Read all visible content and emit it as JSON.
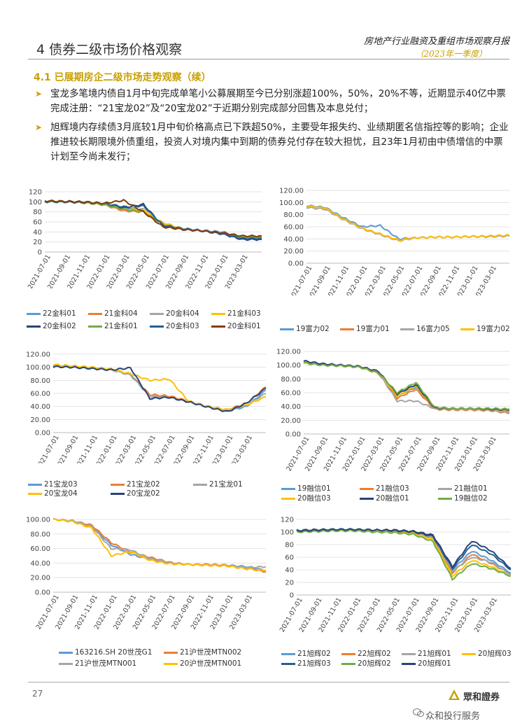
{
  "header": {
    "title": "4 债券二级市场价格观察",
    "right_title": "房地产行业融资及重组市场观察月报",
    "right_sub": "（2023年一季度）"
  },
  "section": "4.1 已展期房企二级市场走势观察（续）",
  "bullets": [
    "宝龙多笔境内债自1月中旬完成单笔小公募展期至今已分别涨超100%，50%，20%不等，近期显示40亿中票完成注册：“21宝龙02”及“20宝龙02”于近期分别完成部分回售及本息兑付；",
    "旭辉境内存续债3月底较1月中旬价格高点已下跌超50%，主要受年报失约、业绩期匿名信指控等的影响；企业推进较长期限境外债重组，投资人对境内集中到期的债券兑付存在较大担忧，且23年1月初由中债增信的中票计划至今尚未发行；"
  ],
  "footer": {
    "page": "27",
    "logo_text": "眾和證券",
    "watermark": "众和投行服务"
  },
  "colors": {
    "gold": "#c8a000"
  },
  "chart_data": [
    {
      "type": "line",
      "ylim": [
        0,
        120
      ],
      "yticks": [
        "0",
        "20",
        "40",
        "60",
        "80",
        "100",
        "120"
      ],
      "xticks": [
        "2021-07-01",
        "2021-09-01",
        "2021-11-01",
        "2022-01-01",
        "2022-03-01",
        "2022-05-01",
        "2022-07-01",
        "2022-09-01",
        "2022-11-01",
        "2023-01-01",
        "2023-03-01"
      ],
      "series": [
        {
          "name": "22金科01",
          "color": "#5b9bd5",
          "values": [
            100,
            100,
            99,
            96,
            88,
            85,
            55,
            47,
            43,
            40,
            30,
            30
          ]
        },
        {
          "name": "21金科04",
          "color": "#ed7d31",
          "values": [
            100,
            100,
            98,
            94,
            82,
            80,
            58,
            46,
            42,
            38,
            30,
            28
          ]
        },
        {
          "name": "20金科04",
          "color": "#a5a5a5",
          "values": [
            100,
            100,
            99,
            95,
            86,
            82,
            56,
            45,
            42,
            38,
            30,
            29
          ]
        },
        {
          "name": "21金科03",
          "color": "#ffc000",
          "values": [
            100,
            100,
            98,
            95,
            85,
            84,
            57,
            46,
            42,
            38,
            30,
            30
          ]
        },
        {
          "name": "20金科02",
          "color": "#264478",
          "values": [
            100,
            100,
            99,
            96,
            88,
            95,
            52,
            45,
            42,
            36,
            25,
            25
          ]
        },
        {
          "name": "21金科01",
          "color": "#70ad47",
          "values": [
            100,
            100,
            98,
            95,
            85,
            80,
            55,
            46,
            42,
            37,
            30,
            30
          ]
        },
        {
          "name": "20金科03",
          "color": "#255e91",
          "values": [
            101,
            100,
            99,
            97,
            90,
            92,
            53,
            46,
            42,
            36,
            27,
            27
          ]
        },
        {
          "name": "20金科01",
          "color": "#843c0c",
          "values": [
            102,
            101,
            100,
            97,
            103,
            80,
            50,
            45,
            42,
            38,
            32,
            32
          ]
        }
      ]
    },
    {
      "type": "line",
      "ylim": [
        0,
        120
      ],
      "yticks": [
        "0.00",
        "20.00",
        "40.00",
        "60.00",
        "80.00",
        "100.00",
        "120.00"
      ],
      "xticks": [
        "2021-07-01",
        "2021-09-01",
        "2021-11-01",
        "2022-01-01",
        "2022-03-01",
        "2022-05-01",
        "2022-07-01",
        "2022-09-01",
        "2022-11-01",
        "2023-01-01",
        "2023-03-01"
      ],
      "series": [
        {
          "name": "19富力02",
          "color": "#5b9bd5",
          "values": [
            95,
            92,
            75,
            60,
            62,
            40,
            42,
            43,
            43,
            44,
            44,
            45
          ]
        },
        {
          "name": "19富力01",
          "color": "#ed7d31",
          "values": [
            93,
            90,
            72,
            58,
            48,
            38,
            42,
            43,
            43,
            44,
            44,
            45
          ]
        },
        {
          "name": "16富力05",
          "color": "#a5a5a5",
          "values": [
            92,
            89,
            72,
            57,
            47,
            37,
            42,
            43,
            43,
            44,
            44,
            45
          ]
        },
        {
          "name": "19富力02",
          "color": "#ffc000",
          "values": [
            94,
            91,
            73,
            58,
            48,
            38,
            42,
            43,
            43,
            44,
            45,
            46
          ]
        }
      ]
    },
    {
      "type": "line",
      "ylim": [
        0,
        120
      ],
      "yticks": [
        "0.00",
        "20.00",
        "40.00",
        "60.00",
        "80.00",
        "100.00",
        "120.00"
      ],
      "xticks": [
        "2021-07-01",
        "2021-09-01",
        "2021-11-01",
        "2022-01-01",
        "2022-03-01",
        "2022-05-01",
        "2022-07-01",
        "2022-09-01",
        "2022-11-01",
        "2023-01-01",
        "2023-03-01"
      ],
      "series": [
        {
          "name": "21宝龙03",
          "color": "#5b9bd5",
          "values": [
            101,
            100,
            98,
            96,
            90,
            55,
            55,
            48,
            40,
            33,
            40,
            65
          ]
        },
        {
          "name": "21宝龙02",
          "color": "#ed7d31",
          "values": [
            103,
            101,
            99,
            97,
            88,
            58,
            56,
            48,
            40,
            35,
            45,
            70
          ]
        },
        {
          "name": "21宝龙01",
          "color": "#a5a5a5",
          "values": [
            102,
            101,
            99,
            96,
            88,
            55,
            54,
            47,
            40,
            34,
            42,
            60
          ]
        },
        {
          "name": "20宝龙04",
          "color": "#ffc000",
          "values": [
            104,
            102,
            100,
            97,
            90,
            80,
            82,
            48,
            40,
            35,
            42,
            55
          ]
        },
        {
          "name": "20宝龙02",
          "color": "#264478",
          "values": [
            101,
            100,
            98,
            96,
            99,
            52,
            54,
            47,
            39,
            32,
            45,
            68
          ]
        }
      ]
    },
    {
      "type": "line",
      "ylim": [
        0,
        120
      ],
      "yticks": [
        "0.00",
        "20.00",
        "40.00",
        "60.00",
        "80.00",
        "100.00",
        "120.00"
      ],
      "xticks": [
        "2021-07-01",
        "2021-09-01",
        "2021-11-01",
        "2022-01-01",
        "2022-03-01",
        "2022-05-01",
        "2022-07-01",
        "2022-09-01",
        "2022-11-01",
        "2023-01-01",
        "2023-03-01"
      ],
      "series": [
        {
          "name": "19融信01",
          "color": "#5b9bd5",
          "values": [
            104,
            101,
            100,
            98,
            90,
            55,
            68,
            38,
            36,
            36,
            36,
            33
          ]
        },
        {
          "name": "21融信03",
          "color": "#ed7d31",
          "values": [
            104,
            100,
            99,
            97,
            88,
            52,
            65,
            36,
            35,
            35,
            34,
            30
          ]
        },
        {
          "name": "21融信01",
          "color": "#a5a5a5",
          "values": [
            104,
            101,
            100,
            98,
            89,
            48,
            48,
            37,
            36,
            36,
            35,
            31
          ]
        },
        {
          "name": "20融信03",
          "color": "#ffc000",
          "values": [
            105,
            101,
            100,
            98,
            90,
            55,
            70,
            38,
            37,
            37,
            36,
            34
          ]
        },
        {
          "name": "20融信01",
          "color": "#264478",
          "values": [
            106,
            102,
            100,
            98,
            91,
            58,
            72,
            38,
            37,
            37,
            36,
            35
          ]
        },
        {
          "name": "19融信02",
          "color": "#70ad47",
          "values": [
            103,
            100,
            99,
            97,
            89,
            60,
            75,
            39,
            37,
            37,
            37,
            36
          ]
        }
      ]
    },
    {
      "type": "line",
      "ylim": [
        0,
        100
      ],
      "yticks": [
        "0.00",
        "20.00",
        "40.00",
        "60.00",
        "80.00",
        "100.00"
      ],
      "xticks": [
        "2021-07-01",
        "2021-09-01",
        "2021-11-01",
        "2022-01-01",
        "2022-03-01",
        "2022-05-01",
        "2022-07-01",
        "2022-09-01",
        "2022-11-01",
        "2023-01-01",
        "2023-03-01"
      ],
      "series": [
        {
          "name": "163216.SH 20世茂G1",
          "color": "#5b9bd5",
          "values": [
            100,
            98,
            90,
            65,
            52,
            45,
            40,
            38,
            38,
            37,
            35,
            30
          ]
        },
        {
          "name": "21沪世茂MTN002",
          "color": "#ed7d31",
          "values": [
            100,
            98,
            92,
            68,
            55,
            48,
            41,
            38,
            38,
            37,
            33,
            28
          ]
        },
        {
          "name": "21沪世茂MTN001",
          "color": "#a5a5a5",
          "values": [
            100,
            98,
            90,
            60,
            58,
            46,
            40,
            38,
            37,
            36,
            34,
            35
          ]
        },
        {
          "name": "20沪世茂MTN001",
          "color": "#ffc000",
          "values": [
            100,
            97,
            88,
            50,
            56,
            44,
            39,
            38,
            37,
            36,
            32,
            30
          ]
        }
      ]
    },
    {
      "type": "line",
      "ylim": [
        0,
        120
      ],
      "yticks": [
        "0",
        "20",
        "40",
        "60",
        "80",
        "100",
        "120"
      ],
      "xticks": [
        "2021-07-01",
        "2021-09-01",
        "2021-11-01",
        "2022-01-01",
        "2022-03-01",
        "2022-05-01",
        "2022-07-01",
        "2022-09-01",
        "2022-11-01",
        "2023-01-01",
        "2023-03-01"
      ],
      "series": [
        {
          "name": "21旭辉02",
          "color": "#5b9bd5",
          "values": [
            101,
            102,
            103,
            103,
            102,
            101,
            100,
            92,
            40,
            70,
            55,
            35
          ]
        },
        {
          "name": "22旭辉02",
          "color": "#ed7d31",
          "values": [
            102,
            103,
            104,
            103,
            102,
            101,
            99,
            90,
            35,
            65,
            50,
            33
          ]
        },
        {
          "name": "21旭辉01",
          "color": "#a5a5a5",
          "values": [
            103,
            104,
            104,
            104,
            103,
            102,
            100,
            91,
            38,
            60,
            52,
            32
          ]
        },
        {
          "name": "20旭辉03",
          "color": "#ffc000",
          "values": [
            101,
            102,
            103,
            102,
            101,
            100,
            98,
            88,
            30,
            55,
            45,
            30
          ]
        },
        {
          "name": "21旭辉03",
          "color": "#255e91",
          "values": [
            102,
            103,
            104,
            104,
            103,
            102,
            100,
            93,
            42,
            80,
            65,
            40
          ]
        },
        {
          "name": "20旭辉02",
          "color": "#70ad47",
          "values": [
            100,
            101,
            102,
            102,
            100,
            99,
            96,
            85,
            25,
            50,
            42,
            30
          ]
        },
        {
          "name": "20旭辉01",
          "color": "#264478",
          "values": [
            102,
            103,
            104,
            104,
            103,
            103,
            101,
            95,
            45,
            86,
            70,
            42
          ]
        }
      ]
    }
  ]
}
